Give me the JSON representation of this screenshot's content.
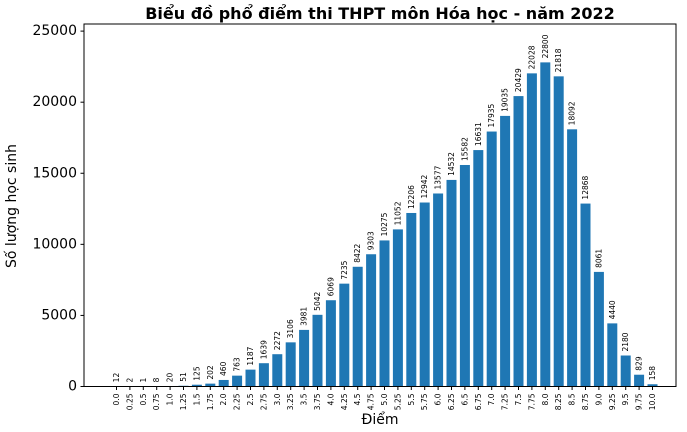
{
  "chart_data": {
    "type": "bar",
    "title": "Biểu đồ phổ điểm thi THPT môn Hóa học - năm 2022",
    "xlabel": "Điểm",
    "ylabel": "Số lượng học sinh",
    "categories": [
      "0.0",
      "0.25",
      "0.5",
      "0.75",
      "1.0",
      "1.25",
      "1.5",
      "1.75",
      "2.0",
      "2.25",
      "2.5",
      "2.75",
      "3.0",
      "3.25",
      "3.5",
      "3.75",
      "4.0",
      "4.25",
      "4.5",
      "4.75",
      "5.0",
      "5.25",
      "5.5",
      "5.75",
      "6.0",
      "6.25",
      "6.5",
      "6.75",
      "7.0",
      "7.25",
      "7.5",
      "7.75",
      "8.0",
      "8.25",
      "8.5",
      "8.75",
      "9.0",
      "9.25",
      "9.5",
      "9.75",
      "10.0"
    ],
    "values": [
      12,
      2,
      1,
      8,
      20,
      51,
      125,
      202,
      460,
      763,
      1187,
      1639,
      2272,
      3106,
      3981,
      5042,
      6069,
      7235,
      8422,
      9303,
      10275,
      11052,
      12206,
      12942,
      13577,
      14532,
      15582,
      16631,
      17935,
      19035,
      20429,
      22028,
      22800,
      21818,
      18092,
      12868,
      8061,
      4440,
      2180,
      829,
      158
    ],
    "bar_labels_visible": true,
    "bar_color": "#1f77b4",
    "text_color": "#000000",
    "ylim": [
      0,
      25500
    ],
    "yticks": [
      0,
      5000,
      10000,
      15000,
      20000,
      25000
    ],
    "ytick_labels": [
      "0",
      "5000",
      "10000",
      "15000",
      "20000",
      "25000"
    ],
    "grid": false,
    "legend": null,
    "tick_label_rotation_deg": 90
  }
}
